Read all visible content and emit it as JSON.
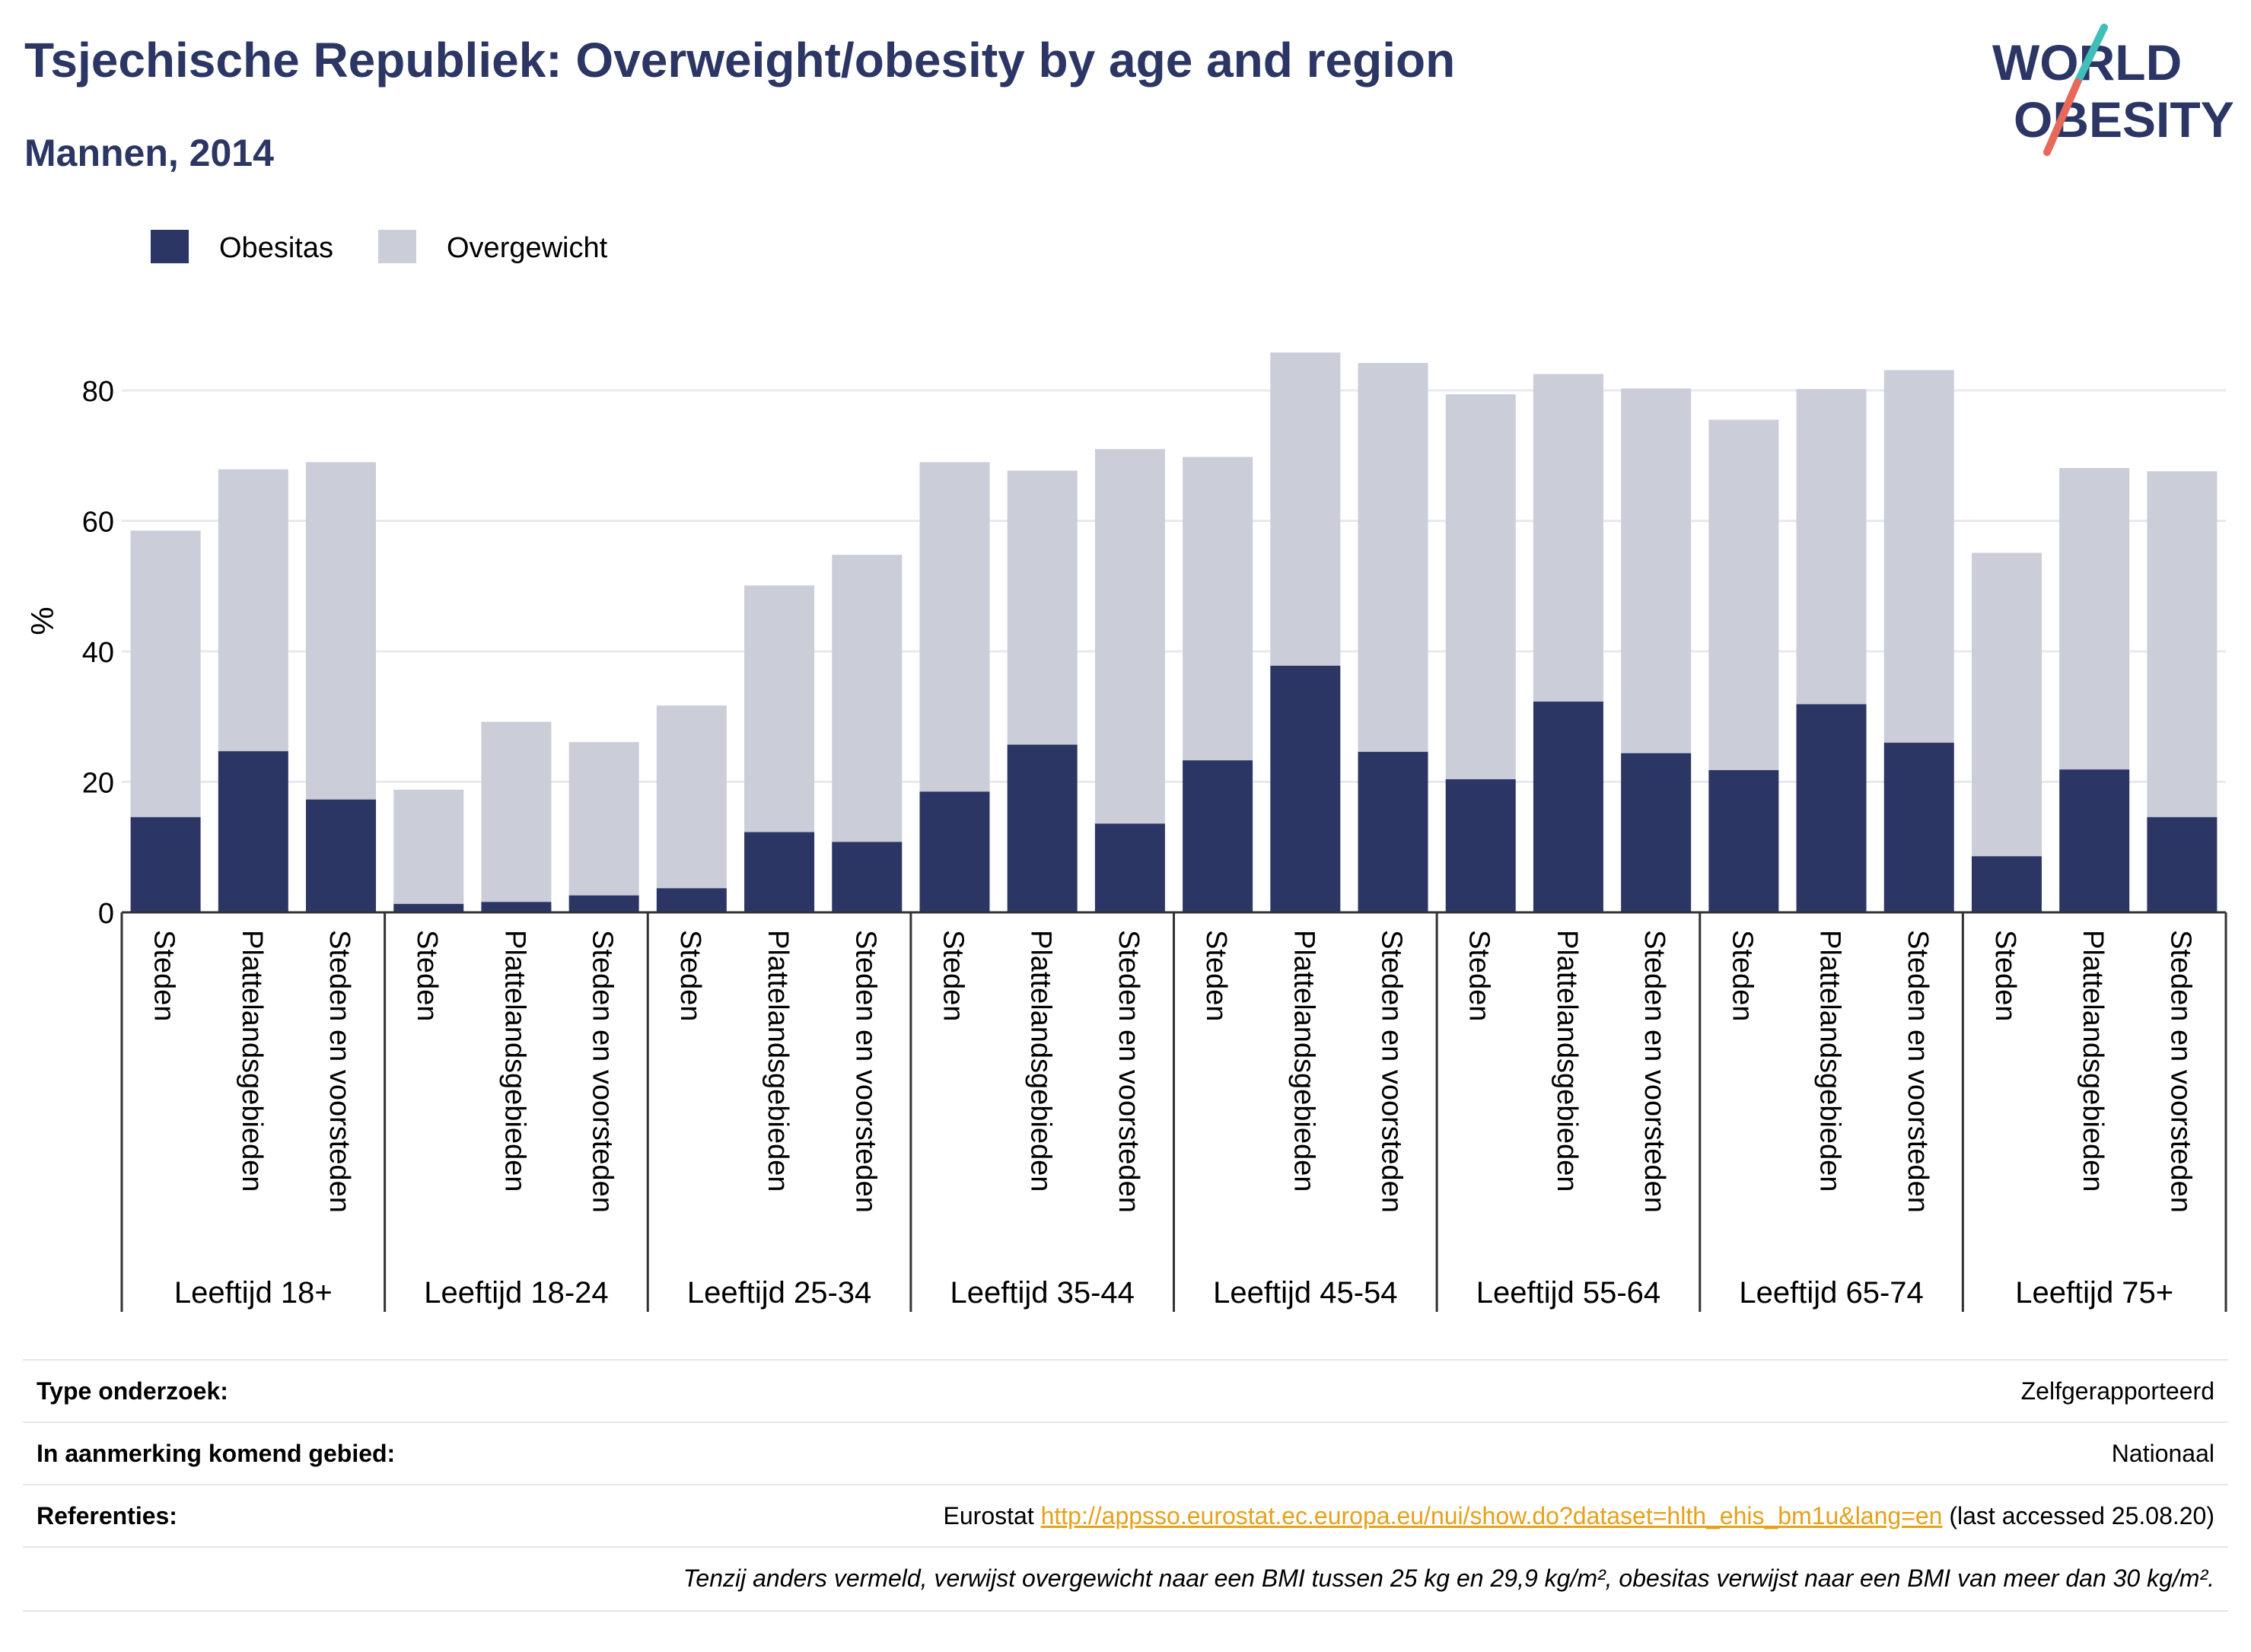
{
  "header": {
    "title": "Tsjechische Republiek: Overweight/obesity by age and region",
    "subtitle": "Mannen, 2014"
  },
  "logo": {
    "line1": "WORLD",
    "line2": "OBESITY",
    "colors": {
      "text": "#2b3664",
      "slash_red": "#e8685a",
      "slash_teal": "#3fbfb8"
    }
  },
  "colors": {
    "obesitas": "#2b3664",
    "overgewicht": "#cbcdd9",
    "grid": "#e8e9ef",
    "axis": "#333333"
  },
  "chart_data": {
    "type": "bar",
    "stacked": true,
    "ylabel": "%",
    "ylim": [
      0,
      90
    ],
    "yticks": [
      0,
      20,
      40,
      60,
      80
    ],
    "grid": true,
    "legend_position": "top-left",
    "series": [
      {
        "name": "Obesitas",
        "color": "#2b3664"
      },
      {
        "name": "Overgewicht",
        "color": "#cbcdd9"
      }
    ],
    "groups": [
      {
        "label": "Leeftijd 18+",
        "bars": [
          {
            "region": "Steden",
            "obesitas": 14.6,
            "total": 58.5
          },
          {
            "region": "Plattelandsgebieden",
            "obesitas": 24.7,
            "total": 67.9
          },
          {
            "region": "Steden en voorsteden",
            "obesitas": 17.3,
            "total": 69.0
          }
        ]
      },
      {
        "label": "Leeftijd 18-24",
        "bars": [
          {
            "region": "Steden",
            "obesitas": 1.3,
            "total": 18.8
          },
          {
            "region": "Plattelandsgebieden",
            "obesitas": 1.6,
            "total": 29.2
          },
          {
            "region": "Steden en voorsteden",
            "obesitas": 2.6,
            "total": 26.1
          }
        ]
      },
      {
        "label": "Leeftijd 25-34",
        "bars": [
          {
            "region": "Steden",
            "obesitas": 3.7,
            "total": 31.7
          },
          {
            "region": "Plattelandsgebieden",
            "obesitas": 12.3,
            "total": 50.1
          },
          {
            "region": "Steden en voorsteden",
            "obesitas": 10.8,
            "total": 54.8
          }
        ]
      },
      {
        "label": "Leeftijd 35-44",
        "bars": [
          {
            "region": "Steden",
            "obesitas": 18.5,
            "total": 69.0
          },
          {
            "region": "Plattelandsgebieden",
            "obesitas": 25.7,
            "total": 67.7
          },
          {
            "region": "Steden en voorsteden",
            "obesitas": 13.6,
            "total": 71.0
          }
        ]
      },
      {
        "label": "Leeftijd 45-54",
        "bars": [
          {
            "region": "Steden",
            "obesitas": 23.3,
            "total": 69.8
          },
          {
            "region": "Plattelandsgebieden",
            "obesitas": 37.8,
            "total": 85.8
          },
          {
            "region": "Steden en voorsteden",
            "obesitas": 24.6,
            "total": 84.2
          }
        ]
      },
      {
        "label": "Leeftijd 55-64",
        "bars": [
          {
            "region": "Steden",
            "obesitas": 20.4,
            "total": 79.4
          },
          {
            "region": "Plattelandsgebieden",
            "obesitas": 32.3,
            "total": 82.5
          },
          {
            "region": "Steden en voorsteden",
            "obesitas": 24.4,
            "total": 80.3
          }
        ]
      },
      {
        "label": "Leeftijd 65-74",
        "bars": [
          {
            "region": "Steden",
            "obesitas": 21.8,
            "total": 75.5
          },
          {
            "region": "Plattelandsgebieden",
            "obesitas": 31.9,
            "total": 80.2
          },
          {
            "region": "Steden en voorsteden",
            "obesitas": 26.0,
            "total": 83.1
          }
        ]
      },
      {
        "label": "Leeftijd 75+",
        "bars": [
          {
            "region": "Steden",
            "obesitas": 8.6,
            "total": 55.1
          },
          {
            "region": "Plattelandsgebieden",
            "obesitas": 21.9,
            "total": 68.1
          },
          {
            "region": "Steden en voorsteden",
            "obesitas": 14.6,
            "total": 67.6
          }
        ]
      }
    ]
  },
  "info": {
    "rows": [
      {
        "label": "Type onderzoek:",
        "value": "Zelfgerapporteerd"
      },
      {
        "label": "In aanmerking komend gebied:",
        "value": "Nationaal"
      },
      {
        "label": "Referenties:",
        "prefix": "Eurostat ",
        "link": "http://appsso.eurostat.ec.europa.eu/nui/show.do?dataset=hlth_ehis_bm1u&lang=en",
        "suffix": " (last accessed 25.08.20)"
      }
    ],
    "note": "Tenzij anders vermeld, verwijst overgewicht naar een BMI tussen 25 kg en 29,9 kg/m², obesitas verwijst naar een BMI van meer dan 30 kg/m²."
  }
}
